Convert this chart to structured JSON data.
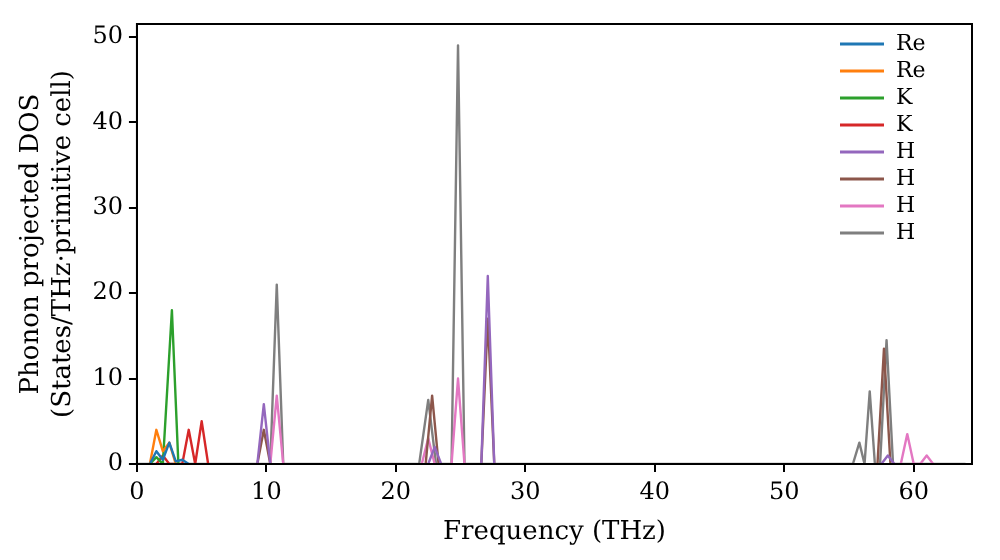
{
  "chart_data": {
    "type": "line",
    "xlabel": "Frequency (THz)",
    "ylabel": "Phonon projected DOS\n(States/THz·primitive cell)",
    "xlim": [
      0,
      64.5
    ],
    "ylim": [
      0,
      51.5
    ],
    "xticks": [
      0,
      10,
      20,
      30,
      40,
      50,
      60
    ],
    "yticks": [
      0,
      10,
      20,
      30,
      40,
      50
    ],
    "grid": false,
    "legend": "top right",
    "marker": "none",
    "line_style": "solid",
    "series": [
      {
        "name": "Re",
        "color": "#1f77b4",
        "x": [
          1,
          1.5,
          2,
          2.5,
          3,
          3.5,
          4
        ],
        "values": [
          0,
          1.5,
          0.5,
          2.5,
          0.3,
          0.5,
          0
        ]
      },
      {
        "name": "Re",
        "color": "#ff7f0e",
        "x": [
          1,
          1.5,
          2,
          2.5,
          3
        ],
        "values": [
          0,
          4,
          1.5,
          2.5,
          0
        ]
      },
      {
        "name": "K",
        "color": "#2ca02c",
        "x": [
          1,
          1.5,
          2,
          2.7,
          3.2
        ],
        "values": [
          0,
          0.8,
          0,
          18,
          0
        ]
      },
      {
        "name": "K",
        "color": "#d62728",
        "x": [
          1.5,
          2,
          2.5,
          3.5,
          4,
          4.5,
          5,
          5.5
        ],
        "values": [
          0,
          1,
          0,
          0,
          4,
          0,
          5,
          0
        ]
      },
      {
        "name": "H",
        "color": "#9467bd",
        "x": [
          9.3,
          9.8,
          10.3,
          15,
          22.5,
          23,
          23.5,
          25,
          26.6,
          27.1,
          27.6,
          40,
          57.5,
          58,
          58.5
        ],
        "values": [
          0,
          7,
          0,
          null,
          0,
          2,
          0,
          null,
          0,
          22,
          0,
          null,
          0,
          1,
          0
        ]
      },
      {
        "name": "H",
        "color": "#8c564b",
        "x": [
          9.3,
          9.8,
          10.3,
          15,
          22.3,
          22.8,
          23.3,
          25,
          26.6,
          27.1,
          27.6,
          40,
          57.2,
          57.7,
          58.2
        ],
        "values": [
          0,
          4,
          0,
          null,
          0,
          8,
          0,
          null,
          0,
          17,
          0,
          null,
          0,
          13.5,
          0
        ]
      },
      {
        "name": "H",
        "color": "#e377c2",
        "x": [
          10.3,
          10.8,
          11.3,
          15,
          22,
          22.5,
          23,
          23.5,
          24.3,
          24.8,
          25.3,
          40,
          59,
          59.5,
          60,
          60.5,
          61,
          61.5
        ],
        "values": [
          0,
          8,
          0,
          null,
          0,
          3,
          0,
          null,
          0,
          10,
          0,
          null,
          0,
          3.5,
          0,
          0,
          1,
          0
        ]
      },
      {
        "name": "H",
        "color": "#7f7f7f",
        "x": [
          0,
          10.3,
          10.8,
          11.3,
          21.8,
          22.5,
          23.1,
          24.3,
          24.8,
          25.3,
          55.3,
          55.8,
          56.2,
          56.6,
          57,
          57.4,
          57.9,
          58.4,
          64
        ],
        "values": [
          0,
          0,
          21,
          0,
          0,
          7.5,
          0,
          0,
          49,
          0,
          0,
          2.5,
          0,
          8.5,
          0,
          0,
          14.5,
          0,
          0
        ]
      }
    ]
  }
}
